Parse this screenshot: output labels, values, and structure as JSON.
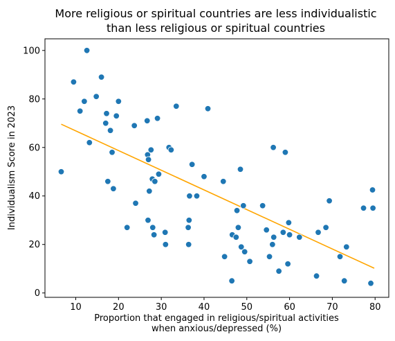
{
  "chart_data": {
    "type": "scatter",
    "title": "More religious or spiritual countries are less individualistic than less religious or spiritual countries",
    "title_lines": [
      "More religious or spiritual countries are less individualistic",
      "than less religious or spiritual countries"
    ],
    "xlabel": "Proportion that engaged in religious/spiritual activities when anxious/depressed (%)",
    "xlabel_lines": [
      "Proportion that engaged in religious/spiritual activities",
      "when anxious/depressed (%)"
    ],
    "ylabel": "Individualism Score in 2023",
    "xlim": [
      2.8,
      83.2
    ],
    "ylim": [
      -1.8,
      104.8
    ],
    "xticks": [
      10,
      20,
      30,
      40,
      50,
      60,
      70,
      80
    ],
    "yticks": [
      0,
      20,
      40,
      60,
      80,
      100
    ],
    "grid": false,
    "colors": {
      "points": "#1f77b4",
      "trend": "#ffa500"
    },
    "points": [
      {
        "x": 6.6,
        "y": 50
      },
      {
        "x": 9.5,
        "y": 87
      },
      {
        "x": 11.0,
        "y": 75
      },
      {
        "x": 12.0,
        "y": 79
      },
      {
        "x": 12.6,
        "y": 100
      },
      {
        "x": 13.2,
        "y": 62
      },
      {
        "x": 14.8,
        "y": 81
      },
      {
        "x": 16.0,
        "y": 89
      },
      {
        "x": 17.0,
        "y": 70
      },
      {
        "x": 17.2,
        "y": 74
      },
      {
        "x": 17.5,
        "y": 46
      },
      {
        "x": 18.1,
        "y": 67
      },
      {
        "x": 18.5,
        "y": 58
      },
      {
        "x": 18.8,
        "y": 43
      },
      {
        "x": 19.5,
        "y": 73
      },
      {
        "x": 20.0,
        "y": 79
      },
      {
        "x": 22.0,
        "y": 27
      },
      {
        "x": 23.7,
        "y": 69
      },
      {
        "x": 24.0,
        "y": 37
      },
      {
        "x": 26.7,
        "y": 71
      },
      {
        "x": 26.8,
        "y": 57
      },
      {
        "x": 26.9,
        "y": 30
      },
      {
        "x": 27.0,
        "y": 55
      },
      {
        "x": 27.2,
        "y": 42
      },
      {
        "x": 27.6,
        "y": 59
      },
      {
        "x": 27.9,
        "y": 47
      },
      {
        "x": 28.0,
        "y": 27
      },
      {
        "x": 28.3,
        "y": 24
      },
      {
        "x": 28.5,
        "y": 46
      },
      {
        "x": 29.1,
        "y": 72
      },
      {
        "x": 29.4,
        "y": 49
      },
      {
        "x": 30.9,
        "y": 25
      },
      {
        "x": 31.0,
        "y": 20
      },
      {
        "x": 31.8,
        "y": 60
      },
      {
        "x": 32.3,
        "y": 59
      },
      {
        "x": 33.5,
        "y": 77
      },
      {
        "x": 36.3,
        "y": 27
      },
      {
        "x": 36.4,
        "y": 20
      },
      {
        "x": 36.5,
        "y": 30
      },
      {
        "x": 36.6,
        "y": 40
      },
      {
        "x": 37.2,
        "y": 53
      },
      {
        "x": 38.3,
        "y": 40
      },
      {
        "x": 40.0,
        "y": 48
      },
      {
        "x": 40.9,
        "y": 76
      },
      {
        "x": 44.5,
        "y": 46
      },
      {
        "x": 44.8,
        "y": 15
      },
      {
        "x": 46.5,
        "y": 5
      },
      {
        "x": 46.6,
        "y": 24
      },
      {
        "x": 47.5,
        "y": 23
      },
      {
        "x": 47.7,
        "y": 34
      },
      {
        "x": 48.0,
        "y": 27
      },
      {
        "x": 48.5,
        "y": 51
      },
      {
        "x": 48.7,
        "y": 19
      },
      {
        "x": 49.2,
        "y": 36
      },
      {
        "x": 49.5,
        "y": 17
      },
      {
        "x": 50.7,
        "y": 13
      },
      {
        "x": 53.7,
        "y": 36
      },
      {
        "x": 54.6,
        "y": 26
      },
      {
        "x": 55.3,
        "y": 15
      },
      {
        "x": 56.0,
        "y": 20
      },
      {
        "x": 56.2,
        "y": 60
      },
      {
        "x": 56.3,
        "y": 23
      },
      {
        "x": 57.5,
        "y": 9
      },
      {
        "x": 58.5,
        "y": 25
      },
      {
        "x": 59.0,
        "y": 58
      },
      {
        "x": 59.6,
        "y": 12
      },
      {
        "x": 59.8,
        "y": 29
      },
      {
        "x": 60.0,
        "y": 24
      },
      {
        "x": 62.3,
        "y": 23
      },
      {
        "x": 66.3,
        "y": 7
      },
      {
        "x": 66.7,
        "y": 25
      },
      {
        "x": 68.5,
        "y": 27
      },
      {
        "x": 69.3,
        "y": 38
      },
      {
        "x": 71.8,
        "y": 15
      },
      {
        "x": 72.8,
        "y": 5
      },
      {
        "x": 73.3,
        "y": 19
      },
      {
        "x": 77.3,
        "y": 35
      },
      {
        "x": 79.0,
        "y": 4
      },
      {
        "x": 79.4,
        "y": 42.5
      },
      {
        "x": 79.5,
        "y": 35
      }
    ],
    "trend_line": {
      "x": [
        6.6,
        79.8
      ],
      "y": [
        69.6,
        10.2
      ]
    }
  }
}
